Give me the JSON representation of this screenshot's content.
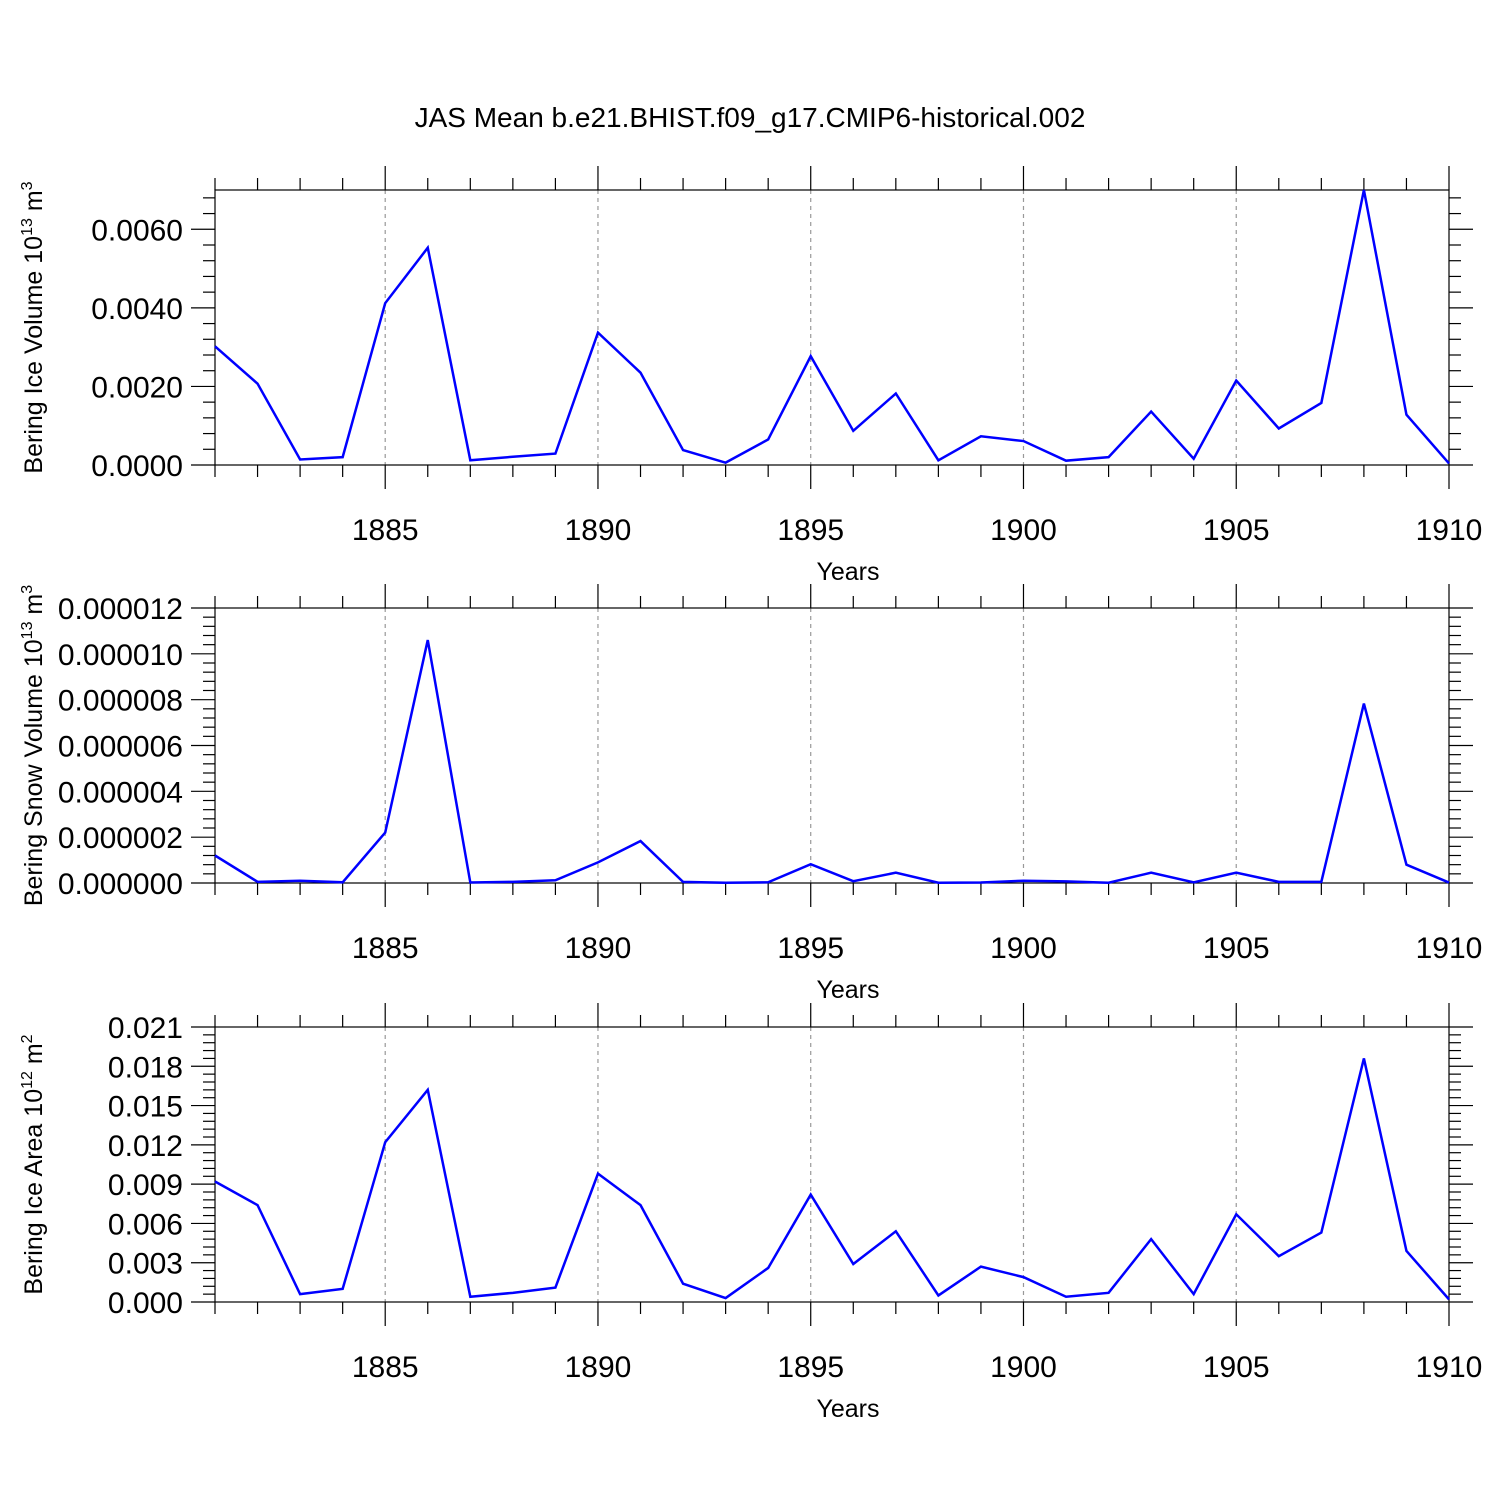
{
  "title": "JAS Mean b.e21.BHIST.f09_g17.CMIP6-historical.002",
  "chart_data": [
    {
      "type": "line",
      "xlabel": "Years",
      "ylabel": "Bering Ice Volume 10",
      "ylabel_sup": "13",
      "ylabel_unit": "m",
      "ylabel_unit_sup": "3",
      "xlim": [
        1881,
        1910
      ],
      "ylim": [
        0,
        0.007
      ],
      "xticks": [
        1885,
        1890,
        1895,
        1900,
        1905,
        1910
      ],
      "xtick_labels": [
        "1885",
        "1890",
        "1895",
        "1900",
        "1905",
        "1910"
      ],
      "yticks": [
        0,
        0.002,
        0.004,
        0.006
      ],
      "ytick_labels": [
        "0.0000",
        "0.0020",
        "0.0040",
        "0.0060"
      ],
      "grid": "x-dashed",
      "color": "#0000ff",
      "x": [
        1881,
        1882,
        1883,
        1884,
        1885,
        1886,
        1887,
        1888,
        1889,
        1890,
        1891,
        1892,
        1893,
        1894,
        1895,
        1896,
        1897,
        1898,
        1899,
        1900,
        1901,
        1902,
        1903,
        1904,
        1905,
        1906,
        1907,
        1908,
        1909,
        1910
      ],
      "values": [
        0.00302,
        0.00207,
        0.00014,
        0.0002,
        0.00412,
        0.00553,
        0.00012,
        0.00021,
        0.00029,
        0.00337,
        0.00235,
        0.00038,
        6e-05,
        0.00065,
        0.00277,
        0.00087,
        0.00182,
        0.00012,
        0.00073,
        0.00061,
        0.00011,
        0.0002,
        0.00136,
        0.00016,
        0.00215,
        0.00093,
        0.00158,
        0.007,
        0.00128,
        4e-05
      ]
    },
    {
      "type": "line",
      "xlabel": "Years",
      "ylabel": "Bering Snow Volume 10",
      "ylabel_sup": "13",
      "ylabel_unit": "m",
      "ylabel_unit_sup": "3",
      "xlim": [
        1881,
        1910
      ],
      "ylim": [
        0,
        1.2e-05
      ],
      "xticks": [
        1885,
        1890,
        1895,
        1900,
        1905,
        1910
      ],
      "xtick_labels": [
        "1885",
        "1890",
        "1895",
        "1900",
        "1905",
        "1910"
      ],
      "yticks": [
        0,
        2e-06,
        4e-06,
        6e-06,
        8e-06,
        1e-05,
        1.2e-05
      ],
      "ytick_labels": [
        "0.000000",
        "0.000002",
        "0.000004",
        "0.000006",
        "0.000008",
        "0.000010",
        "0.000012"
      ],
      "grid": "x-dashed",
      "color": "#0000ff",
      "x": [
        1881,
        1882,
        1883,
        1884,
        1885,
        1886,
        1887,
        1888,
        1889,
        1890,
        1891,
        1892,
        1893,
        1894,
        1895,
        1896,
        1897,
        1898,
        1899,
        1900,
        1901,
        1902,
        1903,
        1904,
        1905,
        1906,
        1907,
        1908,
        1909,
        1910
      ],
      "values": [
        1.2e-06,
        5e-08,
        1e-07,
        3e-08,
        2.2e-06,
        1.06e-05,
        2e-08,
        5e-08,
        1.2e-07,
        9e-07,
        1.83e-06,
        5e-08,
        1e-08,
        3e-08,
        8.2e-07,
        8e-08,
        4.5e-07,
        1e-08,
        2e-08,
        1e-07,
        7e-08,
        1e-08,
        4.5e-07,
        3e-08,
        4.5e-07,
        5e-08,
        5e-08,
        7.83e-06,
        8e-07,
        2e-08
      ]
    },
    {
      "type": "line",
      "xlabel": "Years",
      "ylabel": "Bering Ice Area 10",
      "ylabel_sup": "12",
      "ylabel_unit": "m",
      "ylabel_unit_sup": "2",
      "xlim": [
        1881,
        1910
      ],
      "ylim": [
        0,
        0.021
      ],
      "xticks": [
        1885,
        1890,
        1895,
        1900,
        1905,
        1910
      ],
      "xtick_labels": [
        "1885",
        "1890",
        "1895",
        "1900",
        "1905",
        "1910"
      ],
      "yticks": [
        0,
        0.003,
        0.006,
        0.009,
        0.012,
        0.015,
        0.018,
        0.021
      ],
      "ytick_labels": [
        "0.000",
        "0.003",
        "0.006",
        "0.009",
        "0.012",
        "0.015",
        "0.018",
        "0.021"
      ],
      "grid": "x-dashed",
      "color": "#0000ff",
      "x": [
        1881,
        1882,
        1883,
        1884,
        1885,
        1886,
        1887,
        1888,
        1889,
        1890,
        1891,
        1892,
        1893,
        1894,
        1895,
        1896,
        1897,
        1898,
        1899,
        1900,
        1901,
        1902,
        1903,
        1904,
        1905,
        1906,
        1907,
        1908,
        1909,
        1910
      ],
      "values": [
        0.0092,
        0.0074,
        0.0006,
        0.001,
        0.0122,
        0.0162,
        0.0004,
        0.0007,
        0.0011,
        0.0098,
        0.0074,
        0.0014,
        0.0003,
        0.0026,
        0.0082,
        0.0029,
        0.0054,
        0.0005,
        0.0027,
        0.0019,
        0.0004,
        0.0007,
        0.0048,
        0.0006,
        0.0067,
        0.0035,
        0.0053,
        0.0186,
        0.0039,
        0.0002
      ]
    }
  ]
}
